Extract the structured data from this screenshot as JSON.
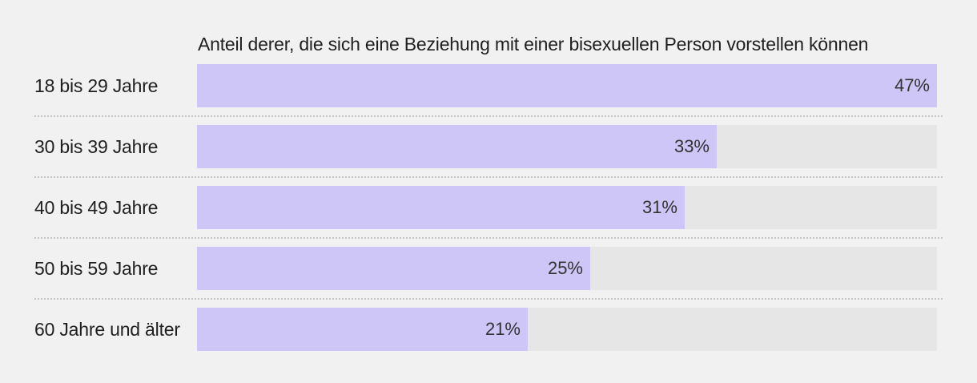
{
  "chart_data": {
    "type": "bar",
    "orientation": "horizontal",
    "title": "Anteil derer, die sich eine Beziehung mit einer bisexuellen Person vorstellen können",
    "categories": [
      "18 bis 29 Jahre",
      "30 bis 39 Jahre",
      "40 bis 49 Jahre",
      "50 bis 59 Jahre",
      "60 Jahre und älter"
    ],
    "values": [
      47,
      33,
      31,
      25,
      21
    ],
    "value_labels": [
      "47%",
      "33%",
      "31%",
      "25%",
      "21%"
    ],
    "unit": "%",
    "xlim": [
      0,
      47
    ],
    "xlabel": "",
    "ylabel": "",
    "grid": false,
    "legend": "none"
  },
  "colors": {
    "background": "#f1f1f1",
    "bar": "#cdc6f7",
    "track": "#e6e6e6",
    "divider": "#c4c4c4",
    "text": "#1f1f1f"
  }
}
